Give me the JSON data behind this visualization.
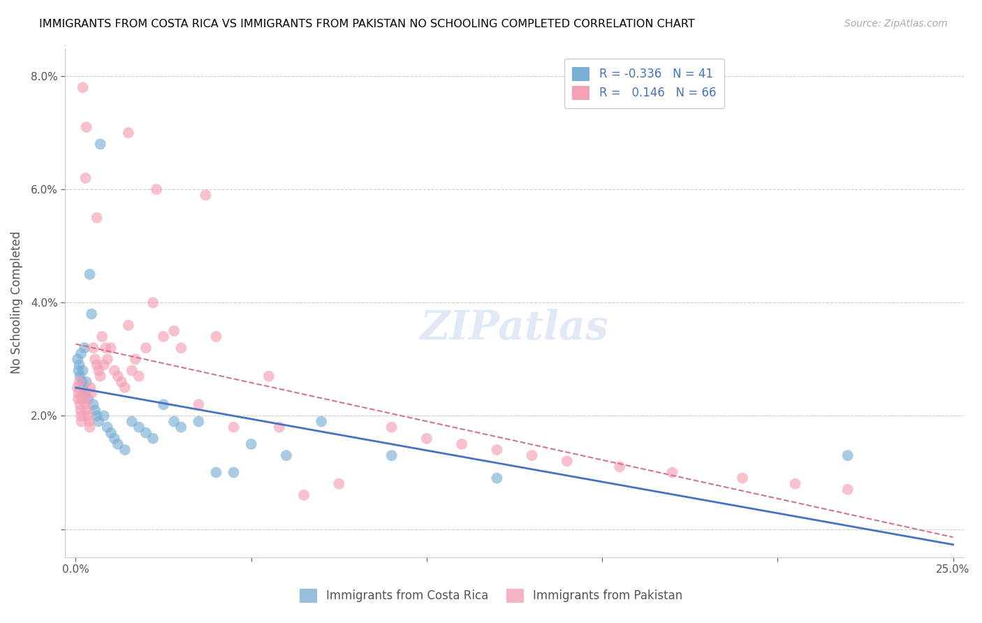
{
  "title": "IMMIGRANTS FROM COSTA RICA VS IMMIGRANTS FROM PAKISTAN NO SCHOOLING COMPLETED CORRELATION CHART",
  "source": "Source: ZipAtlas.com",
  "ylabel": "No Schooling Completed",
  "xlim": [
    0.0,
    25.0
  ],
  "ylim": [
    -0.5,
    8.5
  ],
  "yticks": [
    0.0,
    2.0,
    4.0,
    6.0,
    8.0
  ],
  "ytick_labels": [
    "",
    "2.0%",
    "4.0%",
    "6.0%",
    "8.0%"
  ],
  "watermark": "ZIPatlas",
  "legend_r_blue": "-0.336",
  "legend_n_blue": "41",
  "legend_r_pink": "0.146",
  "legend_n_pink": "66",
  "blue_color": "#7bafd4",
  "pink_color": "#f4a0b5",
  "blue_line_color": "#4472c4",
  "pink_line_color": "#d4748c",
  "costa_rica_x": [
    0.05,
    0.08,
    0.1,
    0.12,
    0.15,
    0.18,
    0.2,
    0.22,
    0.25,
    0.28,
    0.3,
    0.35,
    0.4,
    0.45,
    0.5,
    0.55,
    0.6,
    0.65,
    0.7,
    0.8,
    0.9,
    1.0,
    1.1,
    1.2,
    1.4,
    1.6,
    1.8,
    2.0,
    2.2,
    2.5,
    2.8,
    3.0,
    3.5,
    4.0,
    4.5,
    5.0,
    6.0,
    7.0,
    9.0,
    12.0,
    22.0
  ],
  "costa_rica_y": [
    3.0,
    2.8,
    2.9,
    2.7,
    3.1,
    2.6,
    2.8,
    2.5,
    3.2,
    2.4,
    2.6,
    2.3,
    4.5,
    3.8,
    2.2,
    2.1,
    2.0,
    1.9,
    6.8,
    2.0,
    1.8,
    1.7,
    1.6,
    1.5,
    1.4,
    1.9,
    1.8,
    1.7,
    1.6,
    2.2,
    1.9,
    1.8,
    1.9,
    1.0,
    1.0,
    1.5,
    1.3,
    1.9,
    1.3,
    0.9,
    1.3
  ],
  "pakistan_x": [
    0.05,
    0.07,
    0.08,
    0.1,
    0.12,
    0.14,
    0.15,
    0.16,
    0.18,
    0.2,
    0.22,
    0.25,
    0.28,
    0.3,
    0.32,
    0.35,
    0.38,
    0.4,
    0.42,
    0.45,
    0.5,
    0.55,
    0.6,
    0.65,
    0.7,
    0.75,
    0.8,
    0.85,
    0.9,
    1.0,
    1.1,
    1.2,
    1.3,
    1.4,
    1.5,
    1.6,
    1.7,
    1.8,
    2.0,
    2.2,
    2.5,
    2.8,
    3.0,
    3.5,
    4.0,
    4.5,
    5.5,
    6.5,
    7.5,
    9.0,
    10.0,
    11.0,
    12.0,
    13.0,
    14.0,
    15.5,
    17.0,
    19.0,
    20.5,
    22.0,
    0.3,
    1.5,
    2.3,
    0.6,
    3.7,
    5.8
  ],
  "pakistan_y": [
    2.5,
    2.3,
    2.4,
    2.6,
    2.2,
    2.1,
    2.0,
    1.9,
    2.3,
    7.8,
    2.4,
    2.3,
    6.2,
    2.2,
    2.1,
    2.0,
    1.9,
    1.8,
    2.5,
    2.4,
    3.2,
    3.0,
    2.9,
    2.8,
    2.7,
    3.4,
    2.9,
    3.2,
    3.0,
    3.2,
    2.8,
    2.7,
    2.6,
    2.5,
    3.6,
    2.8,
    3.0,
    2.7,
    3.2,
    4.0,
    3.4,
    3.5,
    3.2,
    2.2,
    3.4,
    1.8,
    2.7,
    0.6,
    0.8,
    1.8,
    1.6,
    1.5,
    1.4,
    1.3,
    1.2,
    1.1,
    1.0,
    0.9,
    0.8,
    0.7,
    7.1,
    7.0,
    6.0,
    5.5,
    5.9,
    1.8
  ]
}
